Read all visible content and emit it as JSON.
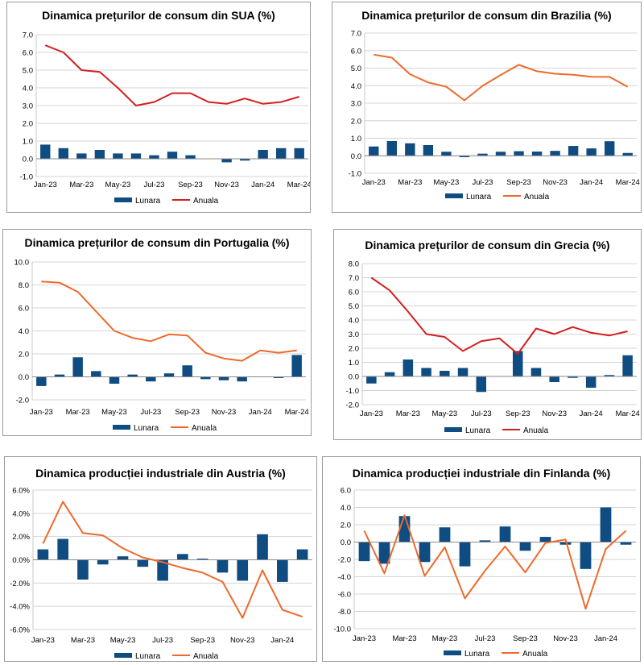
{
  "chart_data": [
    {
      "type": "bar",
      "title": "Dinamica prețurilor de consum din SUA (%)",
      "categories": [
        "Jan-23",
        "Feb-23",
        "Mar-23",
        "Apr-23",
        "May-23",
        "Jun-23",
        "Jul-23",
        "Aug-23",
        "Sep-23",
        "Oct-23",
        "Nov-23",
        "Dec-23",
        "Jan-24",
        "Feb-24",
        "Mar-24"
      ],
      "x_tick_labels": [
        "Jan-23",
        "Mar-23",
        "May-23",
        "Jul-23",
        "Sep-23",
        "Nov-23",
        "Jan-24",
        "Mar-24"
      ],
      "ylim": [
        -1.0,
        7.0
      ],
      "y_ticks": [
        "7.0",
        "6.0",
        "5.0",
        "4.0",
        "3.0",
        "2.0",
        "1.0",
        "0.0",
        "-1.0"
      ],
      "grid": true,
      "legend_position": "bottom",
      "series": [
        {
          "name": "Lunara",
          "kind": "bar",
          "color": "#0f4c81",
          "values": [
            0.8,
            0.6,
            0.3,
            0.5,
            0.3,
            0.3,
            0.2,
            0.4,
            0.2,
            0.0,
            -0.2,
            -0.1,
            0.5,
            0.6,
            0.6
          ]
        },
        {
          "name": "Anuala",
          "kind": "line",
          "color": "#d42020",
          "values": [
            6.4,
            6.0,
            5.0,
            4.9,
            4.0,
            3.0,
            3.2,
            3.7,
            3.7,
            3.2,
            3.1,
            3.4,
            3.1,
            3.2,
            3.5
          ]
        }
      ]
    },
    {
      "type": "bar",
      "title": "Dinamica prețurilor de consum din Brazilia (%)",
      "categories": [
        "Jan-23",
        "Feb-23",
        "Mar-23",
        "Apr-23",
        "May-23",
        "Jun-23",
        "Jul-23",
        "Aug-23",
        "Sep-23",
        "Oct-23",
        "Nov-23",
        "Dec-23",
        "Jan-24",
        "Feb-24",
        "Mar-24"
      ],
      "x_tick_labels": [
        "Jan-23",
        "Mar-23",
        "May-23",
        "Jul-23",
        "Sep-23",
        "Nov-23",
        "Jan-24",
        "Mar-24"
      ],
      "ylim": [
        -1.0,
        7.0
      ],
      "y_ticks": [
        "7.0",
        "6.0",
        "5.0",
        "4.0",
        "3.0",
        "2.0",
        "1.0",
        "0.0",
        "-1.0"
      ],
      "grid": true,
      "legend_position": "bottom",
      "series": [
        {
          "name": "Lunara",
          "kind": "bar",
          "color": "#0f4c81",
          "values": [
            0.53,
            0.84,
            0.71,
            0.61,
            0.23,
            -0.08,
            0.12,
            0.23,
            0.26,
            0.24,
            0.28,
            0.56,
            0.42,
            0.83,
            0.16
          ]
        },
        {
          "name": "Anuala",
          "kind": "line",
          "color": "#ed6a2c",
          "values": [
            5.77,
            5.6,
            4.65,
            4.18,
            3.94,
            3.16,
            3.99,
            4.61,
            5.19,
            4.82,
            4.68,
            4.62,
            4.51,
            4.5,
            3.93
          ]
        }
      ]
    },
    {
      "type": "bar",
      "title": "Dinamica prețurilor de consum din Portugalia (%)",
      "categories": [
        "Jan-23",
        "Feb-23",
        "Mar-23",
        "Apr-23",
        "May-23",
        "Jun-23",
        "Jul-23",
        "Aug-23",
        "Sep-23",
        "Oct-23",
        "Nov-23",
        "Dec-23",
        "Jan-24",
        "Feb-24",
        "Mar-24"
      ],
      "x_tick_labels": [
        "Jan-23",
        "Mar-23",
        "May-23",
        "Jul-23",
        "Sep-23",
        "Nov-23",
        "Jan-24",
        "Mar-24"
      ],
      "ylim": [
        -2.0,
        10.0
      ],
      "y_ticks": [
        "10.0",
        "8.0",
        "6.0",
        "4.0",
        "2.0",
        "0.0",
        "-2.0"
      ],
      "grid": true,
      "legend_position": "bottom",
      "series": [
        {
          "name": "Lunara",
          "kind": "bar",
          "color": "#0f4c81",
          "values": [
            -0.8,
            0.2,
            1.7,
            0.5,
            -0.6,
            0.2,
            -0.4,
            0.3,
            1.0,
            -0.2,
            -0.3,
            -0.4,
            0.0,
            -0.1,
            1.9
          ]
        },
        {
          "name": "Anuala",
          "kind": "line",
          "color": "#ed6a2c",
          "values": [
            8.3,
            8.2,
            7.4,
            5.7,
            4.0,
            3.4,
            3.1,
            3.7,
            3.6,
            2.1,
            1.6,
            1.4,
            2.3,
            2.1,
            2.3
          ]
        }
      ]
    },
    {
      "type": "bar",
      "title": "Dinamica prețurilor de consum din Grecia (%)",
      "categories": [
        "Jan-23",
        "Feb-23",
        "Mar-23",
        "Apr-23",
        "May-23",
        "Jun-23",
        "Jul-23",
        "Aug-23",
        "Sep-23",
        "Oct-23",
        "Nov-23",
        "Dec-23",
        "Jan-24",
        "Feb-24",
        "Mar-24"
      ],
      "x_tick_labels": [
        "Jan-23",
        "Mar-23",
        "May-23",
        "Jul-23",
        "Sep-23",
        "Nov-23",
        "Jan-24",
        "Mar-24"
      ],
      "ylim": [
        -2.0,
        8.0
      ],
      "y_ticks": [
        "8.0",
        "7.0",
        "6.0",
        "5.0",
        "4.0",
        "3.0",
        "2.0",
        "1.0",
        "0.0",
        "-1.0",
        "-2.0"
      ],
      "grid": true,
      "legend_position": "bottom",
      "series": [
        {
          "name": "Lunara",
          "kind": "bar",
          "color": "#0f4c81",
          "values": [
            -0.5,
            0.3,
            1.2,
            0.6,
            0.4,
            0.6,
            -1.1,
            0.0,
            1.8,
            0.6,
            -0.4,
            -0.1,
            -0.8,
            0.1,
            1.5
          ]
        },
        {
          "name": "Anuala",
          "kind": "line",
          "color": "#d42020",
          "values": [
            7.0,
            6.1,
            4.6,
            3.0,
            2.8,
            1.8,
            2.5,
            2.7,
            1.6,
            3.4,
            3.0,
            3.5,
            3.1,
            2.9,
            3.2
          ]
        }
      ]
    },
    {
      "type": "bar",
      "title": "Dinamica producției industriale din Austria (%)",
      "categories": [
        "Jan-23",
        "Feb-23",
        "Mar-23",
        "Apr-23",
        "May-23",
        "Jun-23",
        "Jul-23",
        "Aug-23",
        "Sep-23",
        "Oct-23",
        "Nov-23",
        "Dec-23",
        "Jan-24",
        "Feb-24"
      ],
      "x_tick_labels": [
        "Jan-23",
        "Mar-23",
        "May-23",
        "Jul-23",
        "Sep-23",
        "Nov-23",
        "Jan-24"
      ],
      "ylim": [
        -6.0,
        6.0
      ],
      "y_ticks": [
        "6.0%",
        "4.0%",
        "2.0%",
        "0.0%",
        "-2.0%",
        "-4.0%",
        "-6.0%"
      ],
      "grid": true,
      "legend_position": "bottom",
      "series": [
        {
          "name": "Lunara",
          "kind": "bar",
          "color": "#0f4c81",
          "values": [
            0.9,
            1.8,
            -1.7,
            -0.4,
            0.3,
            -0.6,
            -1.8,
            0.5,
            0.1,
            -1.1,
            -1.8,
            2.2,
            -1.9,
            0.9
          ]
        },
        {
          "name": "Anuala",
          "kind": "line",
          "color": "#ed6a2c",
          "values": [
            1.4,
            5.0,
            2.3,
            2.1,
            1.0,
            0.2,
            -0.2,
            -0.7,
            -1.1,
            -1.9,
            -5.0,
            -0.9,
            -4.3,
            -4.9
          ]
        }
      ]
    },
    {
      "type": "bar",
      "title": "Dinamica producției industriale din Finlanda (%)",
      "categories": [
        "Jan-23",
        "Feb-23",
        "Mar-23",
        "Apr-23",
        "May-23",
        "Jun-23",
        "Jul-23",
        "Aug-23",
        "Sep-23",
        "Oct-23",
        "Nov-23",
        "Dec-23",
        "Jan-24",
        "Feb-24"
      ],
      "x_tick_labels": [
        "Jan-23",
        "Mar-23",
        "May-23",
        "Jul-23",
        "Sep-23",
        "Nov-23",
        "Jan-24"
      ],
      "ylim": [
        -10.0,
        6.0
      ],
      "y_ticks": [
        "6.0",
        "4.0",
        "2.0",
        "0.0",
        "-2.0",
        "-4.0",
        "-6.0",
        "-8.0",
        "-10.0"
      ],
      "grid": true,
      "legend_position": "bottom",
      "series": [
        {
          "name": "Lunara",
          "kind": "bar",
          "color": "#0f4c81",
          "values": [
            -2.2,
            -2.5,
            3.0,
            -2.3,
            1.7,
            -2.8,
            0.2,
            1.8,
            -1.0,
            0.6,
            -0.3,
            -3.1,
            4.0,
            -0.3
          ]
        },
        {
          "name": "Anuala",
          "kind": "line",
          "color": "#ed6a2c",
          "values": [
            1.3,
            -3.6,
            3.1,
            -3.9,
            -0.6,
            -6.5,
            -3.3,
            -0.5,
            -3.5,
            -0.1,
            0.3,
            -7.7,
            -0.8,
            1.3
          ]
        }
      ]
    }
  ]
}
